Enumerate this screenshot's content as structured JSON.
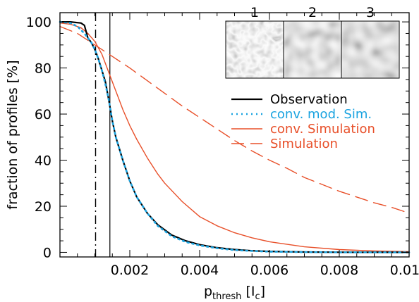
{
  "chart_data": {
    "type": "line",
    "xlabel": {
      "main": "p",
      "sub": "thresh",
      "unit_open": "[I",
      "unit_sub": "c",
      "unit_close": "]"
    },
    "ylabel": "fraction of profiles [%]",
    "xlim": [
      0.0,
      0.01
    ],
    "ylim": [
      -2,
      104
    ],
    "xticks": [
      {
        "value": 0.002,
        "label": "0.002"
      },
      {
        "value": 0.004,
        "label": "0.004"
      },
      {
        "value": 0.006,
        "label": "0.006"
      },
      {
        "value": 0.008,
        "label": "0.008"
      },
      {
        "value": 0.01,
        "label": "0.010"
      }
    ],
    "yticks": [
      {
        "value": 0,
        "label": "0"
      },
      {
        "value": 20,
        "label": "20"
      },
      {
        "value": 40,
        "label": "40"
      },
      {
        "value": 60,
        "label": "60"
      },
      {
        "value": 80,
        "label": "80"
      },
      {
        "value": 100,
        "label": "100"
      }
    ],
    "series": [
      {
        "name": "Observation",
        "color": "#000000",
        "style": "solid",
        "x": [
          0.0,
          0.0003,
          0.0006,
          0.0007,
          0.0008,
          0.0009,
          0.001,
          0.0011,
          0.0012,
          0.0013,
          0.0014,
          0.0015,
          0.0016,
          0.0018,
          0.002,
          0.0022,
          0.0025,
          0.0028,
          0.0032,
          0.0036,
          0.004,
          0.0045,
          0.005,
          0.0055,
          0.006,
          0.007,
          0.008,
          0.009,
          0.01
        ],
        "y": [
          100,
          100,
          99.5,
          98.5,
          93,
          91,
          88,
          84,
          79,
          74,
          66,
          57,
          50,
          40,
          31,
          24,
          17,
          12,
          7.5,
          5,
          3.3,
          2,
          1.2,
          0.7,
          0.4,
          0.15,
          0.05,
          0.02,
          0
        ]
      },
      {
        "name": "conv. mod. Sim.",
        "color": "#1aa3e0",
        "style": "dotted",
        "x": [
          0.0,
          0.0003,
          0.0005,
          0.0007,
          0.0009,
          0.001,
          0.0011,
          0.0012,
          0.0013,
          0.0014,
          0.0015,
          0.0016,
          0.0018,
          0.002,
          0.0022,
          0.0025,
          0.0028,
          0.0032,
          0.0036,
          0.004,
          0.0045,
          0.005,
          0.0055,
          0.006,
          0.007,
          0.008,
          0.009,
          0.01
        ],
        "y": [
          100,
          99.5,
          98,
          95,
          91,
          88,
          84,
          79,
          73,
          66,
          57,
          50,
          40,
          31,
          24,
          17,
          11.5,
          7,
          4.5,
          3,
          1.8,
          1,
          0.6,
          0.3,
          0.1,
          0.03,
          0.01,
          0
        ]
      },
      {
        "name": "conv. Simulation",
        "color": "#e8502a",
        "style": "solid",
        "x": [
          0.0,
          0.0003,
          0.0006,
          0.0008,
          0.001,
          0.0012,
          0.0014,
          0.0016,
          0.0018,
          0.002,
          0.0022,
          0.0025,
          0.0028,
          0.003,
          0.0035,
          0.004,
          0.0045,
          0.005,
          0.0055,
          0.006,
          0.007,
          0.008,
          0.009,
          0.01
        ],
        "y": [
          99.5,
          99,
          97.5,
          95,
          91.5,
          86,
          78,
          70,
          62,
          55,
          49,
          41,
          34,
          30,
          22,
          15.5,
          11.5,
          8.5,
          6.3,
          4.6,
          2.4,
          1.2,
          0.6,
          0.3
        ]
      },
      {
        "name": "Simulation",
        "color": "#e8502a",
        "style": "dashed",
        "x": [
          0.0,
          0.0005,
          0.001,
          0.0015,
          0.002,
          0.0025,
          0.003,
          0.0035,
          0.004,
          0.0045,
          0.005,
          0.0055,
          0.006,
          0.0065,
          0.007,
          0.0075,
          0.008,
          0.0085,
          0.009,
          0.0095,
          0.01
        ],
        "y": [
          98,
          95,
          90,
          85,
          80,
          74.5,
          69,
          63.5,
          58.5,
          53.5,
          48.5,
          44,
          40,
          36.5,
          32.5,
          29.5,
          26.5,
          24,
          21.5,
          19.5,
          17
        ]
      }
    ],
    "reference_lines": [
      {
        "x": 0.00102,
        "style": "dashdot",
        "color": "#000000"
      },
      {
        "x": 0.00143,
        "style": "solid-thin",
        "color": "#000000"
      }
    ],
    "legend": {
      "placement": "right",
      "entries": [
        "Observation",
        "conv. mod. Sim.",
        "conv. Simulation",
        "Simulation"
      ]
    },
    "inset": {
      "placement": "top-right",
      "panel_labels": [
        "1",
        "2",
        "3"
      ]
    },
    "grid": false
  }
}
